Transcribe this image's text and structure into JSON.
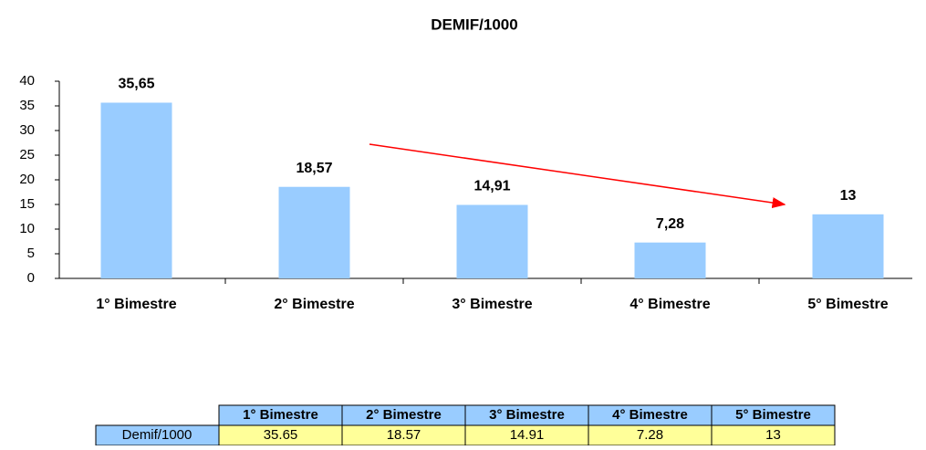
{
  "chart_data": {
    "type": "bar",
    "title": "DEMIF/1000",
    "categories": [
      "1° Bimestre",
      "2° Bimestre",
      "3° Bimestre",
      "4° Bimestre",
      "5° Bimestre"
    ],
    "values": [
      35.65,
      18.57,
      14.91,
      7.28,
      13
    ],
    "value_labels": [
      "35,65",
      "18,57",
      "14,91",
      "7,28",
      "13"
    ],
    "color": "#99ccff",
    "ylim": [
      0,
      40
    ],
    "yticks": [
      0,
      5,
      10,
      15,
      20,
      25,
      30,
      35,
      40
    ],
    "grid": false
  },
  "table": {
    "row_header": "Demif/1000"
  }
}
